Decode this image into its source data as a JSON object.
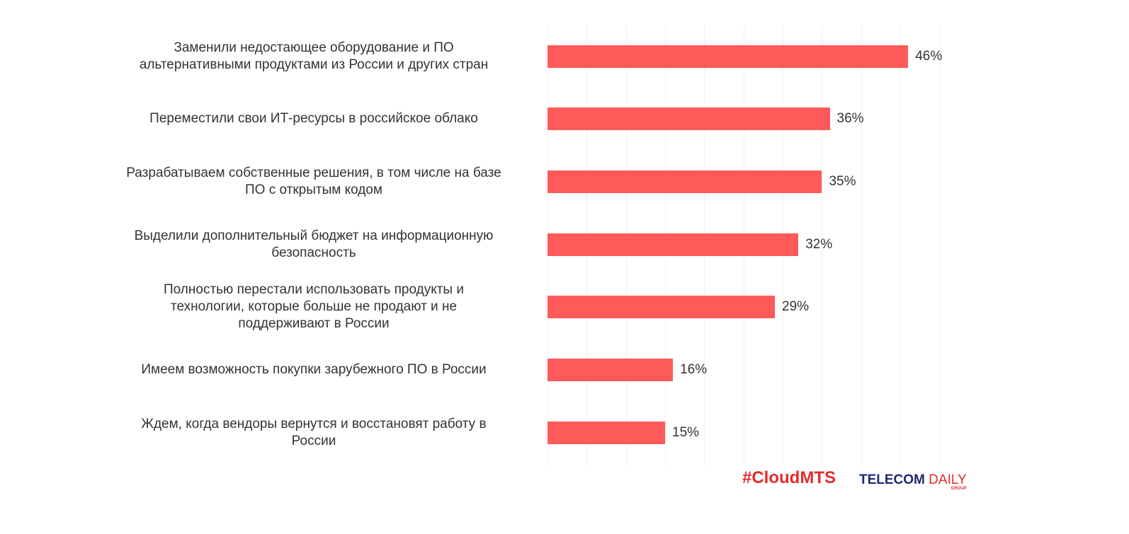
{
  "chart_data": {
    "type": "bar",
    "orientation": "horizontal",
    "title": "",
    "xlabel": "",
    "ylabel": "",
    "xlim": [
      0,
      50
    ],
    "grid": true,
    "bar_color": "#ff5a5a",
    "categories": [
      "Заменили недостающее оборудование и ПО альтернативными продуктами из России и других стран",
      "Переместили свои ИТ-ресурсы в российское облако",
      "Разрабатываем собственные решения, в том числе на базе ПО с открытым кодом",
      "Выделили дополнительный бюджет на информационную безопасность",
      "Полностью перестали использовать продукты и технологии, которые больше не продают и не поддерживают в России",
      "Имеем возможность покупки зарубежного ПО в России",
      "Ждем, когда вендоры вернутся и восстановят работу в России"
    ],
    "values": [
      46,
      36,
      35,
      32,
      29,
      16,
      15
    ],
    "data_labels": [
      "46%",
      "36%",
      "35%",
      "32%",
      "29%",
      "16%",
      "15%"
    ]
  },
  "rows": [
    {
      "label_lines": [
        "Заменили недостающее оборудование и ПО",
        "альтернативными продуктами из России и других стран"
      ],
      "value": "46%"
    },
    {
      "label_lines": [
        "Переместили свои ИТ-ресурсы в российское облако"
      ],
      "value": "36%"
    },
    {
      "label_lines": [
        "Разрабатываем собственные решения, в том числе на базе",
        "ПО с открытым кодом"
      ],
      "value": "35%"
    },
    {
      "label_lines": [
        "Выделили дополнительный бюджет на информационную",
        "безопасность"
      ],
      "value": "32%"
    },
    {
      "label_lines": [
        "Полностью перестали использовать продукты и",
        "технологии, которые больше не продают и не",
        "поддерживают в России"
      ],
      "value": "29%"
    },
    {
      "label_lines": [
        "Имеем возможность покупки зарубежного ПО в России"
      ],
      "value": "16%"
    },
    {
      "label_lines": [
        "Ждем, когда вендоры вернутся и восстановят работу в",
        "России"
      ],
      "value": "15%"
    }
  ],
  "logos": {
    "cloudmts": "#CloudMTS",
    "telecom_bold": "TELECOM",
    "telecom_light": " DAILY",
    "telecom_group": "GROUP"
  }
}
